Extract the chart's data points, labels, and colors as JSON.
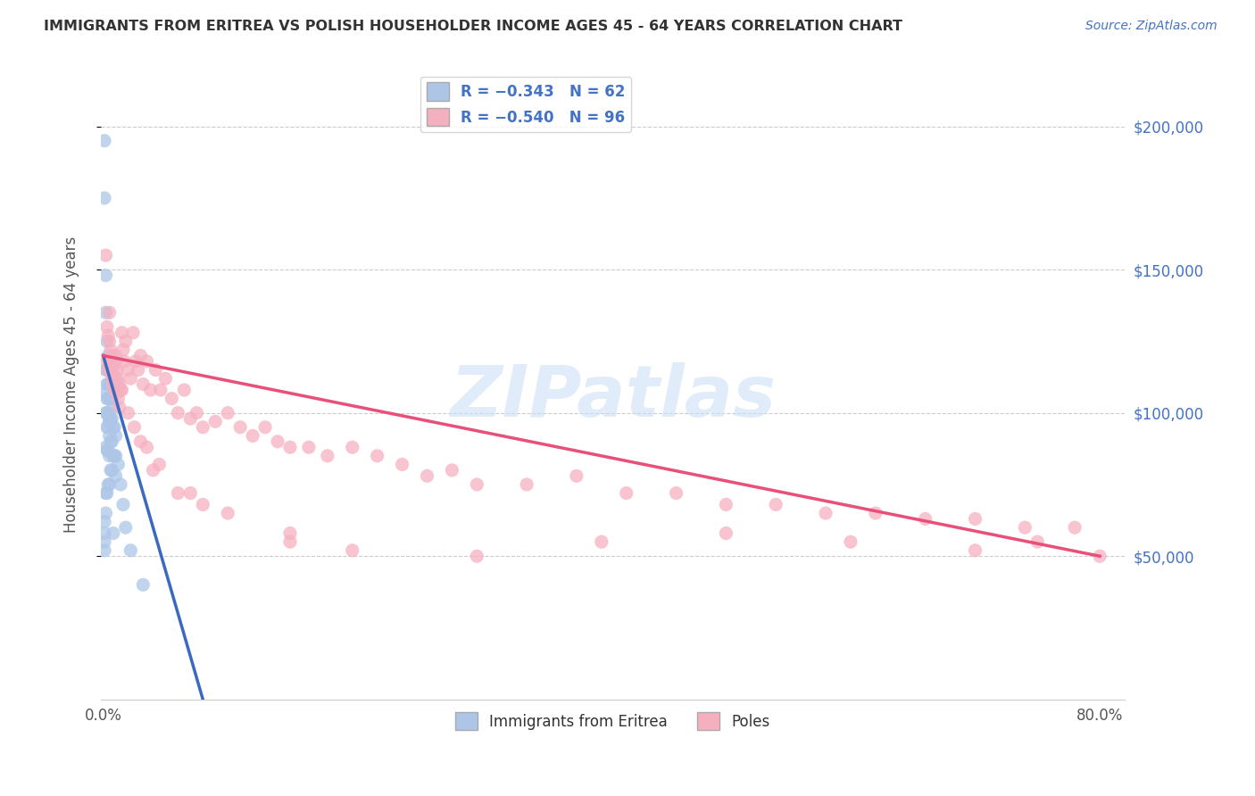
{
  "title": "IMMIGRANTS FROM ERITREA VS POLISH HOUSEHOLDER INCOME AGES 45 - 64 YEARS CORRELATION CHART",
  "source": "Source: ZipAtlas.com",
  "ylabel": "Householder Income Ages 45 - 64 years",
  "eritrea_color": "#adc6e8",
  "eritrea_line_color": "#3a6abf",
  "poles_color": "#f5b0c0",
  "poles_line_color": "#e8507a",
  "dashed_line_color": "#bbbbbb",
  "watermark": "ZIPatlas",
  "ylim_min": 0,
  "ylim_max": 220000,
  "xlim_min": -0.002,
  "xlim_max": 0.82,
  "ytick_vals": [
    50000,
    100000,
    150000,
    200000
  ],
  "right_axis_labels": [
    "$50,000",
    "$100,000",
    "$150,000",
    "$200,000"
  ],
  "eritrea_intercept": 120000,
  "eritrea_slope": -1500000,
  "poles_intercept": 120000,
  "poles_slope": -87500,
  "eritrea_points_x": [
    0.001,
    0.001,
    0.001,
    0.001,
    0.001,
    0.002,
    0.002,
    0.002,
    0.002,
    0.002,
    0.002,
    0.002,
    0.003,
    0.003,
    0.003,
    0.003,
    0.003,
    0.003,
    0.003,
    0.003,
    0.004,
    0.004,
    0.004,
    0.004,
    0.004,
    0.004,
    0.004,
    0.004,
    0.005,
    0.005,
    0.005,
    0.005,
    0.005,
    0.005,
    0.005,
    0.006,
    0.006,
    0.006,
    0.006,
    0.006,
    0.007,
    0.007,
    0.007,
    0.007,
    0.008,
    0.008,
    0.008,
    0.009,
    0.009,
    0.01,
    0.01,
    0.01,
    0.012,
    0.014,
    0.016,
    0.018,
    0.022,
    0.032,
    0.001,
    0.002,
    0.005,
    0.008
  ],
  "eritrea_points_y": [
    195000,
    62000,
    58000,
    55000,
    52000,
    148000,
    115000,
    107000,
    100000,
    88000,
    72000,
    65000,
    125000,
    115000,
    110000,
    105000,
    100000,
    95000,
    87000,
    72000,
    120000,
    115000,
    110000,
    105000,
    100000,
    95000,
    87000,
    75000,
    115000,
    110000,
    105000,
    98000,
    92000,
    85000,
    75000,
    110000,
    105000,
    98000,
    90000,
    80000,
    105000,
    98000,
    90000,
    80000,
    102000,
    95000,
    85000,
    95000,
    85000,
    92000,
    85000,
    78000,
    82000,
    75000,
    68000,
    60000,
    52000,
    40000,
    175000,
    135000,
    97000,
    58000
  ],
  "poles_points_x": [
    0.002,
    0.003,
    0.003,
    0.004,
    0.004,
    0.005,
    0.005,
    0.006,
    0.006,
    0.007,
    0.007,
    0.008,
    0.008,
    0.009,
    0.009,
    0.01,
    0.01,
    0.011,
    0.011,
    0.012,
    0.012,
    0.013,
    0.013,
    0.014,
    0.015,
    0.016,
    0.017,
    0.018,
    0.02,
    0.022,
    0.024,
    0.026,
    0.028,
    0.03,
    0.032,
    0.035,
    0.038,
    0.042,
    0.046,
    0.05,
    0.055,
    0.06,
    0.065,
    0.07,
    0.075,
    0.08,
    0.09,
    0.1,
    0.11,
    0.12,
    0.13,
    0.14,
    0.15,
    0.165,
    0.18,
    0.2,
    0.22,
    0.24,
    0.26,
    0.28,
    0.3,
    0.34,
    0.38,
    0.42,
    0.46,
    0.5,
    0.54,
    0.58,
    0.62,
    0.66,
    0.7,
    0.74,
    0.78,
    0.005,
    0.01,
    0.015,
    0.02,
    0.025,
    0.03,
    0.04,
    0.06,
    0.08,
    0.1,
    0.15,
    0.2,
    0.3,
    0.4,
    0.5,
    0.6,
    0.7,
    0.75,
    0.8,
    0.035,
    0.045,
    0.07,
    0.15
  ],
  "poles_points_y": [
    155000,
    130000,
    118000,
    127000,
    115000,
    125000,
    118000,
    122000,
    115000,
    120000,
    112000,
    118000,
    110000,
    116000,
    108000,
    118000,
    112000,
    115000,
    107000,
    112000,
    105000,
    110000,
    102000,
    108000,
    128000,
    122000,
    118000,
    125000,
    115000,
    112000,
    128000,
    118000,
    115000,
    120000,
    110000,
    118000,
    108000,
    115000,
    108000,
    112000,
    105000,
    100000,
    108000,
    98000,
    100000,
    95000,
    97000,
    100000,
    95000,
    92000,
    95000,
    90000,
    88000,
    88000,
    85000,
    88000,
    85000,
    82000,
    78000,
    80000,
    75000,
    75000,
    78000,
    72000,
    72000,
    68000,
    68000,
    65000,
    65000,
    63000,
    63000,
    60000,
    60000,
    135000,
    120000,
    108000,
    100000,
    95000,
    90000,
    80000,
    72000,
    68000,
    65000,
    58000,
    52000,
    50000,
    55000,
    58000,
    55000,
    52000,
    55000,
    50000,
    88000,
    82000,
    72000,
    55000
  ]
}
